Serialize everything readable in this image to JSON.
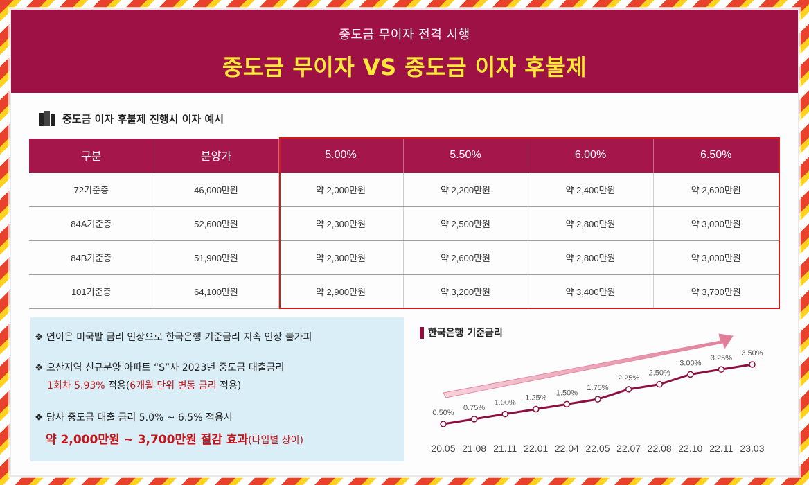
{
  "header": {
    "subtitle": "중도금 무이자 전격 시행",
    "title": "중도금 무이자 VS 중도금 이자  후불제"
  },
  "section": {
    "title": "중도금 이자 후불제 진행시 이자 예시",
    "icon": "building-icon"
  },
  "table": {
    "headers": [
      "구분",
      "분양가",
      "5.00%",
      "5.50%",
      "6.00%",
      "6.50%"
    ],
    "rows": [
      [
        "72기준층",
        "46,000만원",
        "약 2,000만원",
        "약 2,200만원",
        "약 2,400만원",
        "약 2,600만원"
      ],
      [
        "84A기준층",
        "52,600만원",
        "약 2,300만원",
        "약 2,500만원",
        "약 2,800만원",
        "약 3,000만원"
      ],
      [
        "84B기준층",
        "51,900만원",
        "약 2,300만원",
        "약 2,600만원",
        "약 2,800만원",
        "약 3,000만원"
      ],
      [
        "101기준층",
        "64,100만원",
        "약 2,900만원",
        "약 3,200만원",
        "약 3,400만원",
        "약 3,700만원"
      ]
    ]
  },
  "notes": {
    "bullet": "❖",
    "line1": "연이은 미국발 금리 인상으로 한국은행 기준금리 지속 인상 불가피",
    "line2": "오산지역 신규분양 아파트 “S”사 2023년 중도금 대출금리",
    "line3_a": "1회차 5.93%",
    "line3_b": " 적용(",
    "line3_c": "6개월 단위 변동 금리",
    "line3_d": " 적용)",
    "line4": "당사 중도금 대출 금리 5.0% ~ 6.5% 적용시",
    "line5_a": "약 2,000만원 ~ 3,700만원 절감 효과",
    "line5_b": "(타입별 상이)"
  },
  "colors": {
    "header": "#9e1145",
    "accent_yellow": "#ffe83a",
    "line": "#8b1040",
    "highlight_red": "#d11a1a"
  },
  "chart_data": {
    "type": "line",
    "title": "한국은행 기준금리",
    "x": [
      "20.05",
      "21.08",
      "21.11",
      "22.01",
      "22.04",
      "22.05",
      "22.07",
      "22.08",
      "22.10",
      "22.11",
      "23.03"
    ],
    "series": [
      {
        "values": [
          0.5,
          0.75,
          1.0,
          1.25,
          1.5,
          1.75,
          2.25,
          2.5,
          3.0,
          3.25,
          3.5
        ],
        "labels": [
          "0.50%",
          "0.75%",
          "1.00%",
          "1.25%",
          "1.50%",
          "1.75%",
          "2.25%",
          "2.50%",
          "3.00%",
          "3.25%",
          "3.50%"
        ]
      }
    ]
  }
}
